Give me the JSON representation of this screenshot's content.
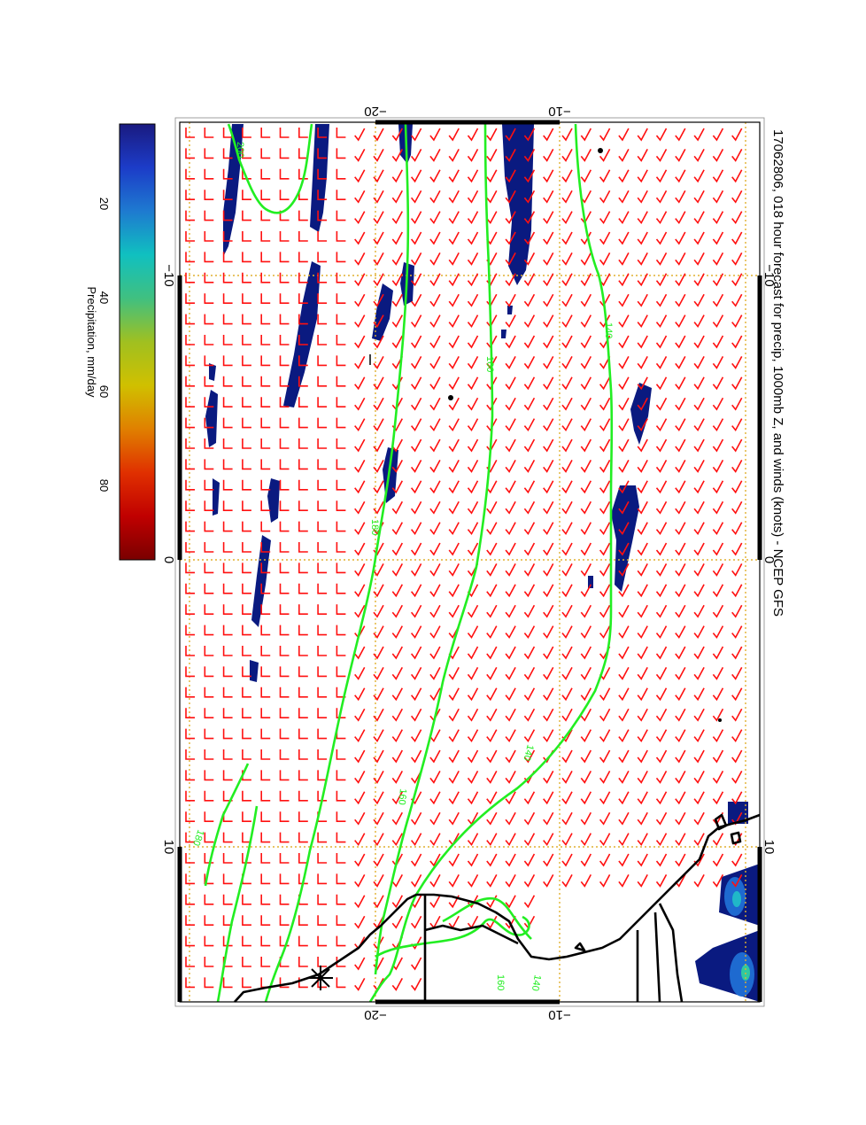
{
  "header": {
    "title": "17062806, 018 hour forecast for precip, 1000mb Z, and winds (knots) - NCEP GFS",
    "stamp": "17062806"
  },
  "colorbar": {
    "label": "Precipitation, mm/day",
    "tick_labels": [
      "20",
      "40",
      "60",
      "80"
    ],
    "colors": [
      "#1a1a80",
      "#1c3cc8",
      "#1e7ad0",
      "#10c0c0",
      "#40c080",
      "#a0c020",
      "#d0c000",
      "#e08000",
      "#e03000",
      "#c00000",
      "#7a0000"
    ]
  },
  "axes": {
    "lon_labels": [
      "−10",
      "0",
      "10"
    ],
    "lat_labels": [
      "−20",
      "−10"
    ]
  },
  "contours": {
    "labels": [
      "140",
      "160",
      "180",
      "200",
      "140",
      "160",
      "180",
      "140",
      "160"
    ],
    "color": "#22ee22"
  },
  "wind_barbs": {
    "color": "#ff1010"
  },
  "colors": {
    "precip_dark": "#0a1a80",
    "frame": "#000000",
    "grid": "#e0b030",
    "stamp": "#ff22ff"
  }
}
